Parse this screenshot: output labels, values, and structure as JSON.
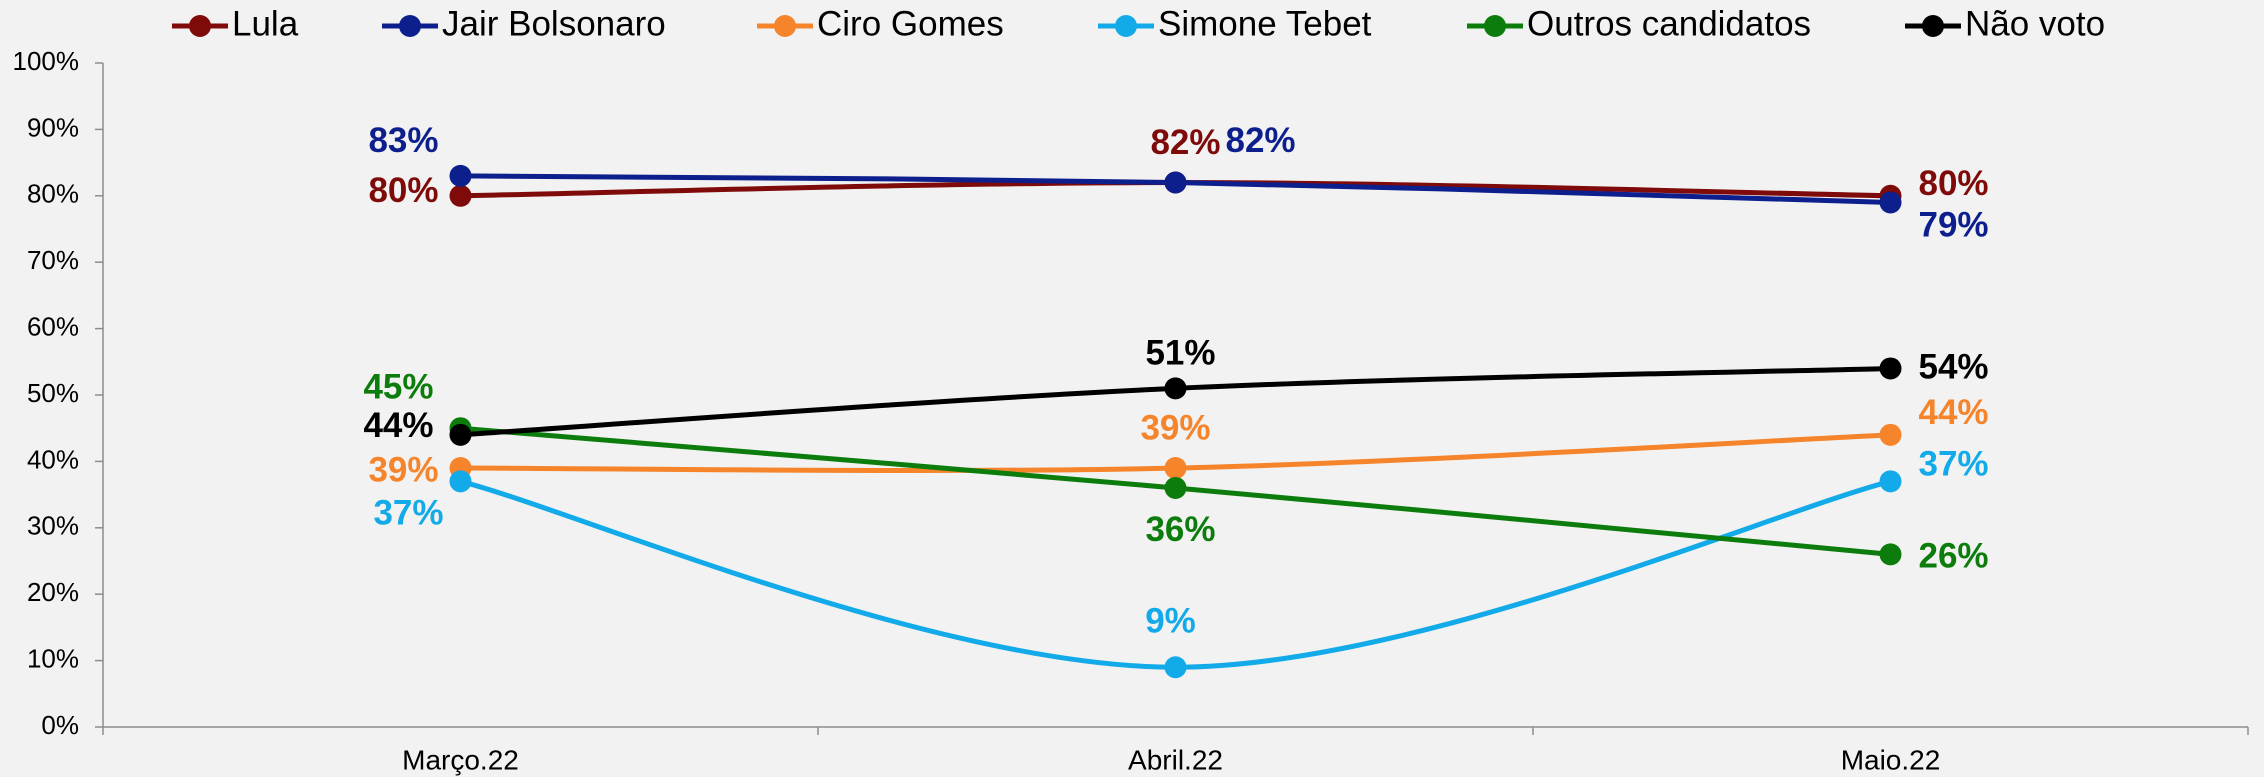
{
  "chart_data": {
    "type": "line",
    "smooth": true,
    "categories": [
      "Março.22",
      "Abril.22",
      "Maio.22"
    ],
    "series": [
      {
        "name": "Lula",
        "color": "#7f0a0a",
        "values": [
          80,
          82,
          80
        ],
        "value_labels": [
          "80%",
          "82%",
          "80%"
        ]
      },
      {
        "name": "Jair Bolsonaro",
        "color": "#0d1f8c",
        "values": [
          83,
          82,
          79
        ],
        "value_labels": [
          "83%",
          "82%",
          "79%"
        ]
      },
      {
        "name": "Ciro Gomes",
        "color": "#f5842b",
        "values": [
          39,
          39,
          44
        ],
        "value_labels": [
          "39%",
          "39%",
          "44%"
        ]
      },
      {
        "name": "Simone Tebet",
        "color": "#12aae8",
        "values": [
          37,
          9,
          37
        ],
        "value_labels": [
          "37%",
          "9%",
          "37%"
        ]
      },
      {
        "name": "Outros candidatos",
        "color": "#0c7d0c",
        "values": [
          45,
          36,
          26
        ],
        "value_labels": [
          "45%",
          "36%",
          "26%"
        ]
      },
      {
        "name": "Não voto",
        "color": "#000000",
        "values": [
          44,
          51,
          54
        ],
        "value_labels": [
          "44%",
          "51%",
          "54%"
        ]
      }
    ],
    "ylim": [
      0,
      100
    ],
    "yticks": [
      {
        "value": 0,
        "label": "0%"
      },
      {
        "value": 10,
        "label": "10%"
      },
      {
        "value": 20,
        "label": "20%"
      },
      {
        "value": 30,
        "label": "30%"
      },
      {
        "value": 40,
        "label": "40%"
      },
      {
        "value": 50,
        "label": "50%"
      },
      {
        "value": 60,
        "label": "60%"
      },
      {
        "value": 70,
        "label": "70%"
      },
      {
        "value": 80,
        "label": "80%"
      },
      {
        "value": 90,
        "label": "90%"
      },
      {
        "value": 100,
        "label": "100%"
      }
    ],
    "legend": "top"
  }
}
